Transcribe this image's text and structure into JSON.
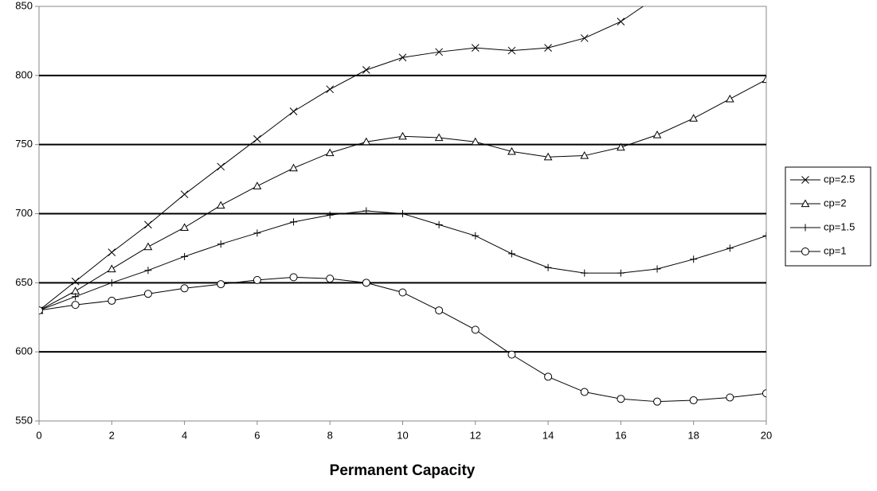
{
  "chart_data": {
    "type": "line",
    "x_label": "Permanent Capacity",
    "x": [
      0,
      1,
      2,
      3,
      4,
      5,
      6,
      7,
      8,
      9,
      10,
      11,
      12,
      13,
      14,
      15,
      16,
      17,
      18,
      19,
      20
    ],
    "xlim": [
      0,
      20
    ],
    "xticks": [
      0,
      2,
      4,
      6,
      8,
      10,
      12,
      14,
      16,
      18,
      20
    ],
    "ylim": [
      550,
      850
    ],
    "yticks": [
      550,
      600,
      650,
      700,
      750,
      800,
      850
    ],
    "grid": true,
    "legend": "right",
    "series": [
      {
        "name": "cp=2.5",
        "color": "#000000",
        "marker": "x",
        "values": [
          630,
          651,
          672,
          692,
          714,
          734,
          754,
          774,
          790,
          804,
          813,
          817,
          820,
          818,
          820,
          827,
          839,
          857,
          null,
          null,
          null
        ]
      },
      {
        "name": "cp=2",
        "color": "#000000",
        "marker": "triangle",
        "values": [
          630,
          644,
          660,
          676,
          690,
          706,
          720,
          733,
          744,
          752,
          756,
          755,
          752,
          745,
          741,
          742,
          748,
          757,
          769,
          783,
          797
        ]
      },
      {
        "name": "cp=1.5",
        "color": "#000000",
        "marker": "plus",
        "values": [
          630,
          640,
          650,
          659,
          669,
          678,
          686,
          694,
          699,
          702,
          700,
          692,
          684,
          671,
          661,
          657,
          657,
          660,
          667,
          675,
          684
        ]
      },
      {
        "name": "cp=1",
        "color": "#000000",
        "marker": "circle",
        "values": [
          630,
          634,
          637,
          642,
          646,
          649,
          652,
          654,
          653,
          650,
          643,
          630,
          616,
          598,
          582,
          571,
          566,
          564,
          565,
          567,
          570
        ]
      }
    ]
  }
}
